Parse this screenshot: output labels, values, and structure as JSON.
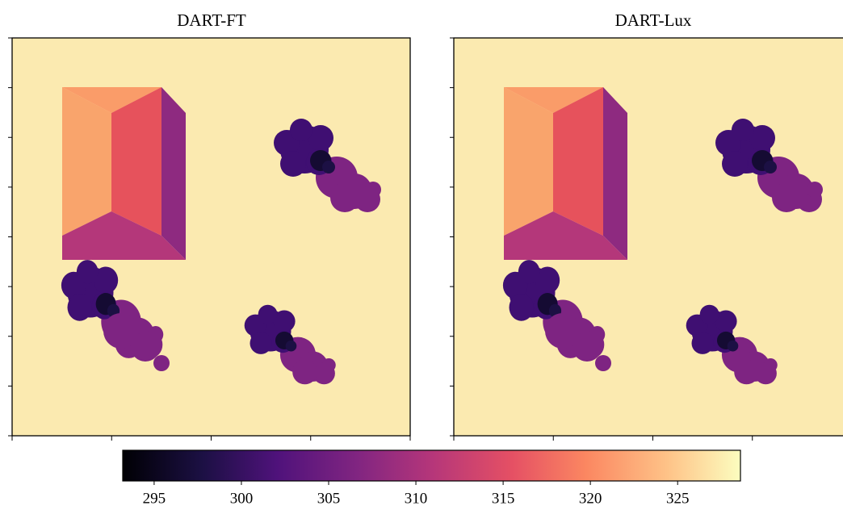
{
  "chart_data": {
    "type": "heatmap",
    "panels": [
      {
        "title": "DART-FT"
      },
      {
        "title": "DART-Lux"
      }
    ],
    "colormap": "magma",
    "clim": [
      293.2,
      328.6
    ],
    "cticks": [
      295,
      300,
      305,
      310,
      315,
      320,
      325
    ]
  }
}
